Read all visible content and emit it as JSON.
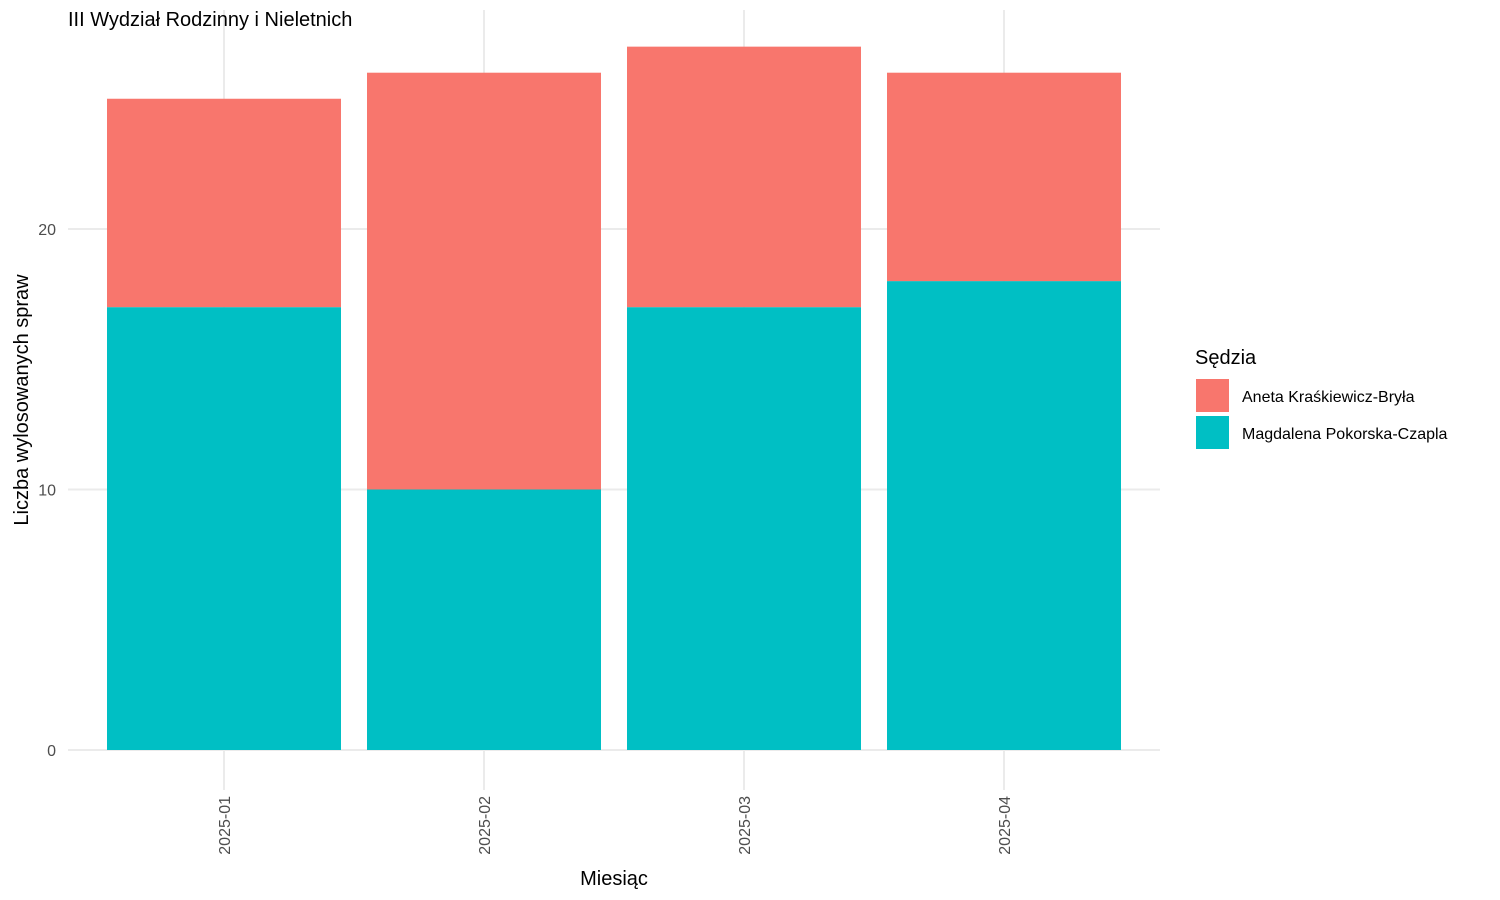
{
  "chart_data": {
    "type": "bar",
    "stacked": true,
    "title": "III Wydział Rodzinny i Nieletnich",
    "xlabel": "Miesiąc",
    "ylabel": "Liczba wylosowanych spraw",
    "categories": [
      "2025-01",
      "2025-02",
      "2025-03",
      "2025-04"
    ],
    "series": [
      {
        "name": "Magdalena Pokorska-Czapla",
        "color": "#00BFC4",
        "values": [
          17,
          10,
          17,
          18
        ]
      },
      {
        "name": "Aneta Kraśkiewicz-Bryła",
        "color": "#F8766D",
        "values": [
          8,
          16,
          10,
          8
        ]
      }
    ],
    "ylim": [
      0,
      27
    ],
    "yticks": [
      0,
      10,
      20
    ],
    "ytick_labels": [
      "0",
      "10",
      "20"
    ],
    "grid": true,
    "legend": {
      "title": "Sędzia",
      "position": "right",
      "entries": [
        {
          "label": "Aneta Kraśkiewicz-Bryła",
          "color": "#F8766D"
        },
        {
          "label": "Magdalena Pokorska-Czapla",
          "color": "#00BFC4"
        }
      ]
    }
  }
}
